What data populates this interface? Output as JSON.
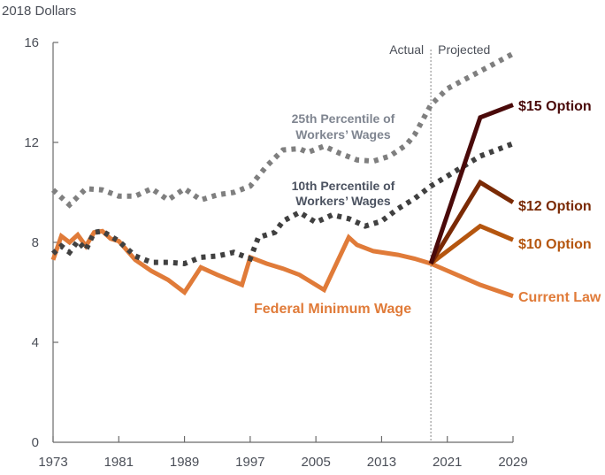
{
  "chart_data": {
    "type": "line",
    "title": "",
    "ylabel": "2018 Dollars",
    "xlabel": "",
    "xlim": [
      1973,
      2029
    ],
    "ylim": [
      0,
      16
    ],
    "x_ticks": [
      1973,
      1981,
      1989,
      1997,
      2005,
      2013,
      2021,
      2029
    ],
    "y_ticks": [
      0,
      4,
      8,
      12,
      16
    ],
    "grid": false,
    "divider": {
      "x": 2019,
      "left_label": "Actual",
      "right_label": "Projected"
    },
    "series": [
      {
        "name": "25th Percentile of Workers' Wages",
        "label_lines": [
          "25th Percentile of",
          "Workers’ Wages"
        ],
        "style": "dotted",
        "color": "#7f7f7f",
        "label_color": "#7f8590",
        "x": [
          1973,
          1975,
          1977,
          1979,
          1981,
          1983,
          1985,
          1987,
          1989,
          1991,
          1993,
          1995,
          1997,
          1999,
          2001,
          2003,
          2004,
          2006,
          2008,
          2010,
          2012,
          2014,
          2016,
          2017,
          2018,
          2019,
          2021,
          2025,
          2029
        ],
        "y": [
          10.1,
          9.5,
          10.15,
          10.1,
          9.85,
          9.85,
          10.15,
          9.7,
          10.15,
          9.7,
          9.9,
          10.0,
          10.25,
          11.05,
          11.7,
          11.75,
          11.6,
          11.85,
          11.55,
          11.3,
          11.25,
          11.45,
          11.9,
          12.3,
          12.9,
          13.5,
          14.15,
          14.85,
          15.55
        ]
      },
      {
        "name": "10th Percentile of Workers' Wages",
        "label_lines": [
          "10th Percentile of",
          "Workers’ Wages"
        ],
        "style": "dotted",
        "color": "#404040",
        "label_color": "#4b5260",
        "x": [
          1973,
          1974,
          1975,
          1976,
          1977,
          1978,
          1979,
          1981,
          1983,
          1985,
          1987,
          1989,
          1991,
          1993,
          1995,
          1997,
          1998,
          2000,
          2001,
          2003,
          2005,
          2007,
          2009,
          2011,
          2013,
          2015,
          2017,
          2019,
          2025,
          2029
        ],
        "y": [
          7.55,
          7.85,
          7.6,
          8.05,
          7.7,
          8.4,
          8.45,
          8.05,
          7.45,
          7.2,
          7.2,
          7.15,
          7.4,
          7.45,
          7.6,
          7.35,
          8.2,
          8.4,
          8.85,
          9.2,
          8.8,
          9.1,
          8.95,
          8.65,
          8.85,
          9.35,
          9.75,
          10.25,
          11.45,
          11.95
        ]
      },
      {
        "name": "Federal Minimum Wage",
        "label_lines": [
          "Federal Minimum Wage"
        ],
        "style": "solid",
        "color": "#e07b39",
        "label_color": "#e07b39",
        "x": [
          1973,
          1974,
          1975,
          1976,
          1977,
          1978,
          1979,
          1980,
          1981,
          1983,
          1985,
          1987,
          1989,
          1991,
          1993,
          1996,
          1997,
          1999,
          2001,
          2003,
          2006,
          2009,
          2010,
          2012,
          2015,
          2017,
          2019
        ],
        "y": [
          7.3,
          8.25,
          8.0,
          8.3,
          7.85,
          8.4,
          8.45,
          8.15,
          8.05,
          7.3,
          6.85,
          6.5,
          6.0,
          7.0,
          6.7,
          6.3,
          7.4,
          7.15,
          6.95,
          6.7,
          6.1,
          8.2,
          7.9,
          7.65,
          7.5,
          7.35,
          7.15
        ]
      },
      {
        "name": "Current Law",
        "style": "solid",
        "color": "#e07b39",
        "x": [
          2019,
          2025,
          2029
        ],
        "y": [
          7.15,
          6.3,
          5.85
        ]
      },
      {
        "name": "$10 Option",
        "style": "solid",
        "color": "#b5560f",
        "x": [
          2019,
          2025,
          2029
        ],
        "y": [
          7.15,
          8.65,
          8.1
        ]
      },
      {
        "name": "$12 Option",
        "style": "solid",
        "color": "#7a2a05",
        "x": [
          2019,
          2025,
          2029
        ],
        "y": [
          7.15,
          10.4,
          9.6
        ]
      },
      {
        "name": "$15 Option",
        "style": "solid",
        "color": "#4a0a0a",
        "x": [
          2019,
          2025,
          2029
        ],
        "y": [
          7.15,
          13.0,
          13.5
        ]
      }
    ]
  }
}
